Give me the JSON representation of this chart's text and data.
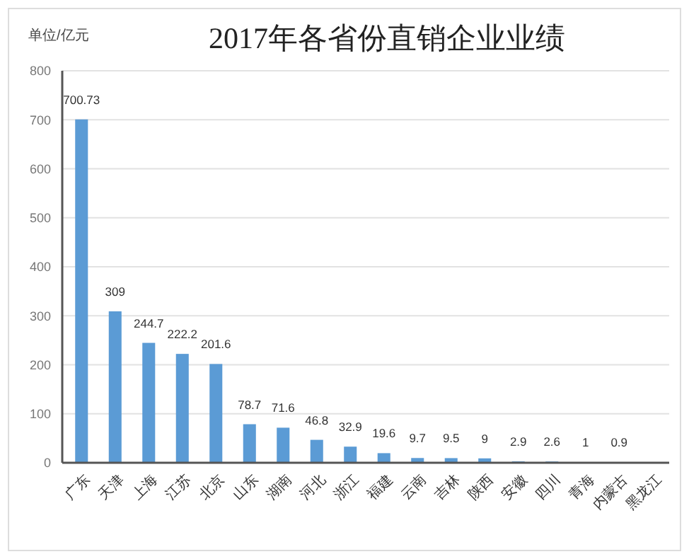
{
  "chart_data": {
    "type": "bar",
    "title": "2017年各省份直销企业业绩",
    "ylabel": "单位/亿元",
    "categories": [
      "广东",
      "天津",
      "上海",
      "江苏",
      "北京",
      "山东",
      "湖南",
      "河北",
      "浙江",
      "福建",
      "云南",
      "吉林",
      "陕西",
      "安徽",
      "四川",
      "青海",
      "内蒙古",
      "黑龙江"
    ],
    "values": [
      700.73,
      309,
      244.7,
      222.2,
      201.6,
      78.7,
      71.6,
      46.8,
      32.9,
      19.6,
      9.7,
      9.5,
      9,
      2.9,
      2.6,
      1,
      0.9,
      null
    ],
    "color": "#5b9bd5",
    "ylim": [
      0,
      800
    ],
    "yticks": [
      0,
      100,
      200,
      300,
      400,
      500,
      600,
      700,
      800
    ],
    "grid": "y",
    "data_labels": true
  }
}
